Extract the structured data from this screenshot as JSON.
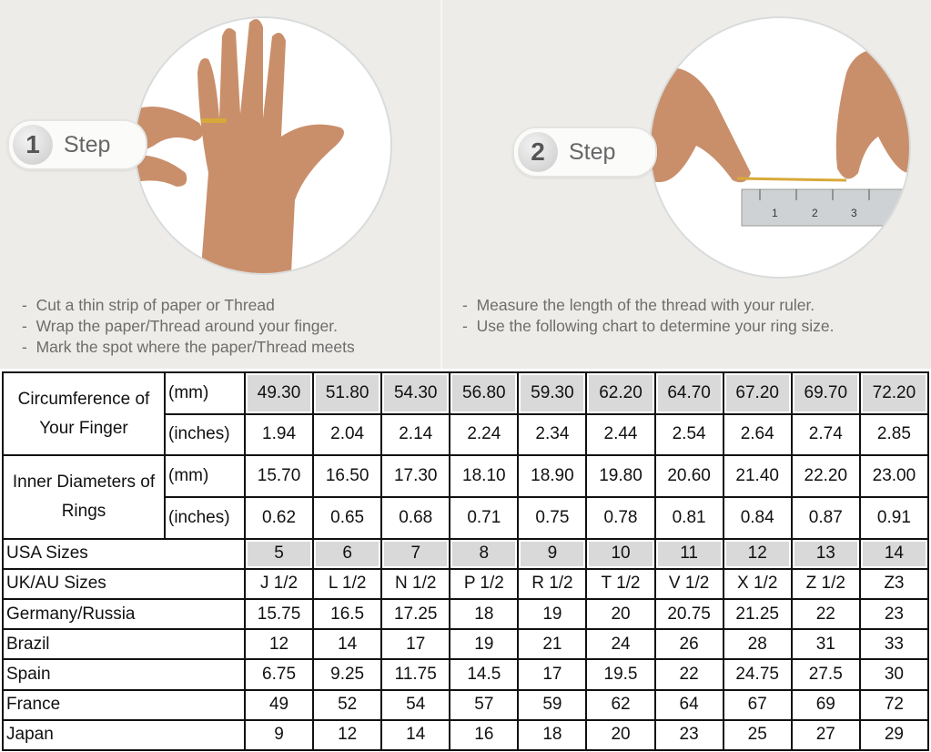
{
  "steps": [
    {
      "number": "1",
      "label": "Step",
      "instructions": [
        "Cut a thin strip of paper or Thread",
        "Wrap the paper/Thread around your finger.",
        "Mark the spot where the paper/Thread meets"
      ]
    },
    {
      "number": "2",
      "label": "Step",
      "instructions": [
        "Measure the length of the thread with your ruler.",
        "Use the following chart to determine your ring size."
      ]
    }
  ],
  "ruler": {
    "marks": [
      "1",
      "2",
      "3"
    ]
  },
  "colors": {
    "background": "#eeece8",
    "table_highlight": "#d9d9d9",
    "skin": "#c98f6b"
  },
  "table": {
    "groups": [
      {
        "label": "Circumference of Your Finger",
        "rows": [
          {
            "unit": "(mm)",
            "values": [
              "49.30",
              "51.80",
              "54.30",
              "56.80",
              "59.30",
              "62.20",
              "64.70",
              "67.20",
              "69.70",
              "72.20"
            ],
            "highlight": true
          },
          {
            "unit": "(inches)",
            "values": [
              "1.94",
              "2.04",
              "2.14",
              "2.24",
              "2.34",
              "2.44",
              "2.54",
              "2.64",
              "2.74",
              "2.85"
            ],
            "highlight": false
          }
        ]
      },
      {
        "label": "Inner Diameters of Rings",
        "rows": [
          {
            "unit": "(mm)",
            "values": [
              "15.70",
              "16.50",
              "17.30",
              "18.10",
              "18.90",
              "19.80",
              "20.60",
              "21.40",
              "22.20",
              "23.00"
            ],
            "highlight": false
          },
          {
            "unit": "(inches)",
            "values": [
              "0.62",
              "0.65",
              "0.68",
              "0.71",
              "0.75",
              "0.78",
              "0.81",
              "0.84",
              "0.87",
              "0.91"
            ],
            "highlight": false
          }
        ]
      }
    ],
    "rows": [
      {
        "label": "USA Sizes",
        "values": [
          "5",
          "6",
          "7",
          "8",
          "9",
          "10",
          "11",
          "12",
          "13",
          "14"
        ],
        "highlight": true
      },
      {
        "label": "UK/AU Sizes",
        "values": [
          "J 1/2",
          "L 1/2",
          "N 1/2",
          "P 1/2",
          "R 1/2",
          "T 1/2",
          "V 1/2",
          "X 1/2",
          "Z 1/2",
          "Z3"
        ],
        "highlight": false
      },
      {
        "label": "Germany/Russia",
        "values": [
          "15.75",
          "16.5",
          "17.25",
          "18",
          "19",
          "20",
          "20.75",
          "21.25",
          "22",
          "23"
        ],
        "highlight": false
      },
      {
        "label": "Brazil",
        "values": [
          "12",
          "14",
          "17",
          "19",
          "21",
          "24",
          "26",
          "28",
          "31",
          "33"
        ],
        "highlight": false
      },
      {
        "label": "Spain",
        "values": [
          "6.75",
          "9.25",
          "11.75",
          "14.5",
          "17",
          "19.5",
          "22",
          "24.75",
          "27.5",
          "30"
        ],
        "highlight": false
      },
      {
        "label": "France",
        "values": [
          "49",
          "52",
          "54",
          "57",
          "59",
          "62",
          "64",
          "67",
          "69",
          "72"
        ],
        "highlight": false
      },
      {
        "label": "Japan",
        "values": [
          "9",
          "12",
          "14",
          "16",
          "18",
          "20",
          "23",
          "25",
          "27",
          "29"
        ],
        "highlight": false
      }
    ]
  }
}
